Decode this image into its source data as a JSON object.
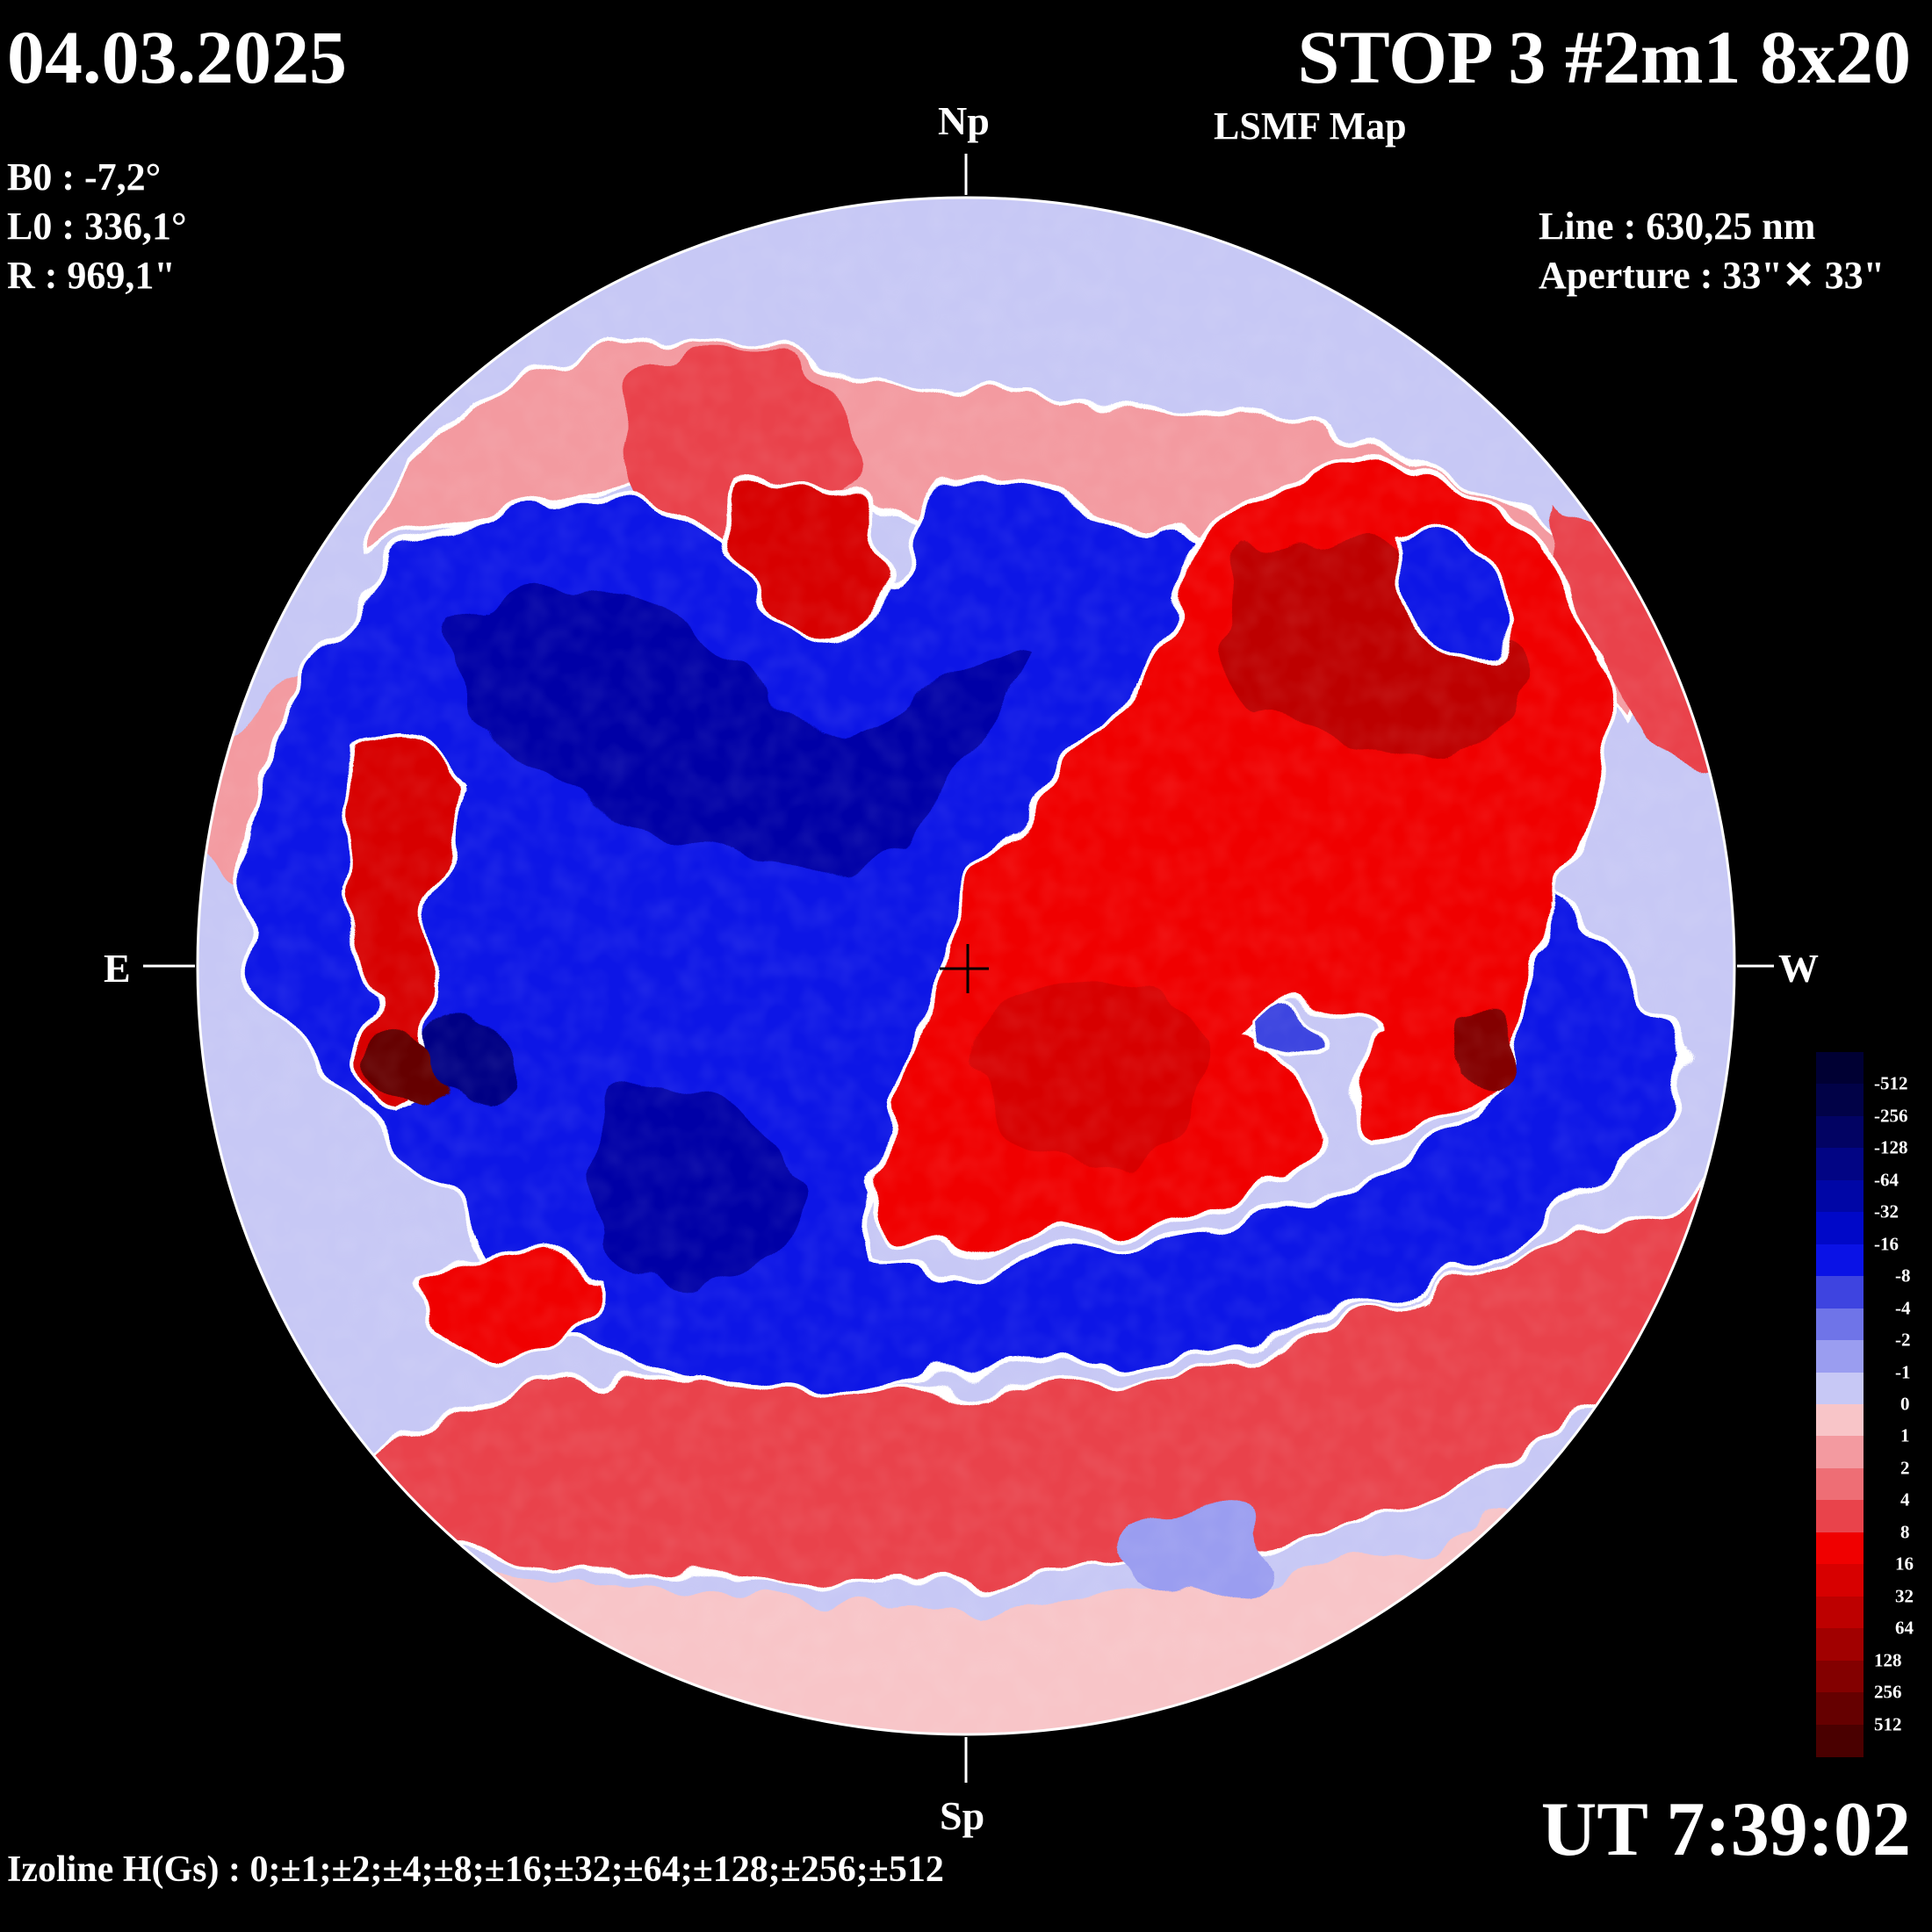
{
  "header": {
    "date": "04.03.2025",
    "title": "STOP 3 #2m1 8x20",
    "subtitle": "LSMF  Map"
  },
  "params": {
    "b0": "B0 : -7,2°",
    "l0": "L0 : 336,1°",
    "r": "R  : 969,1\""
  },
  "instrument": {
    "line": "Line :  630,25 nm",
    "aperture": "Aperture : 33\"✕ 33\""
  },
  "compass": {
    "north": "Np",
    "south": "Sp",
    "east": "E",
    "west": "W"
  },
  "time": "UT 7:39:02",
  "izoline": "Izoline H(Gs) : 0;±1;±2;±4;±8;±16;±32;±64;±128;±256;±512",
  "colors": {
    "background": "#000000",
    "isoline_zero": "#ffffff",
    "negative": [
      "#c7c8f5",
      "#9a9df0",
      "#6f74e8",
      "#3e44e0",
      "#0a12e6",
      "#0008c8",
      "#0006a6",
      "#020584",
      "#020363",
      "#010247",
      "#000033"
    ],
    "positive": [
      "#f8c5c8",
      "#f39aa0",
      "#ee6e75",
      "#e9434b",
      "#f00000",
      "#d70000",
      "#bd0000",
      "#a10000",
      "#830000",
      "#650000",
      "#4a0000"
    ]
  },
  "scale": {
    "labels": [
      "-512",
      "-256",
      "-128",
      "-64",
      "-32",
      "-16",
      "-8",
      "-4",
      "-2",
      "-1",
      "0",
      "1",
      "2",
      "4",
      "8",
      "16",
      "32",
      "64",
      "128",
      "256",
      "512"
    ]
  }
}
